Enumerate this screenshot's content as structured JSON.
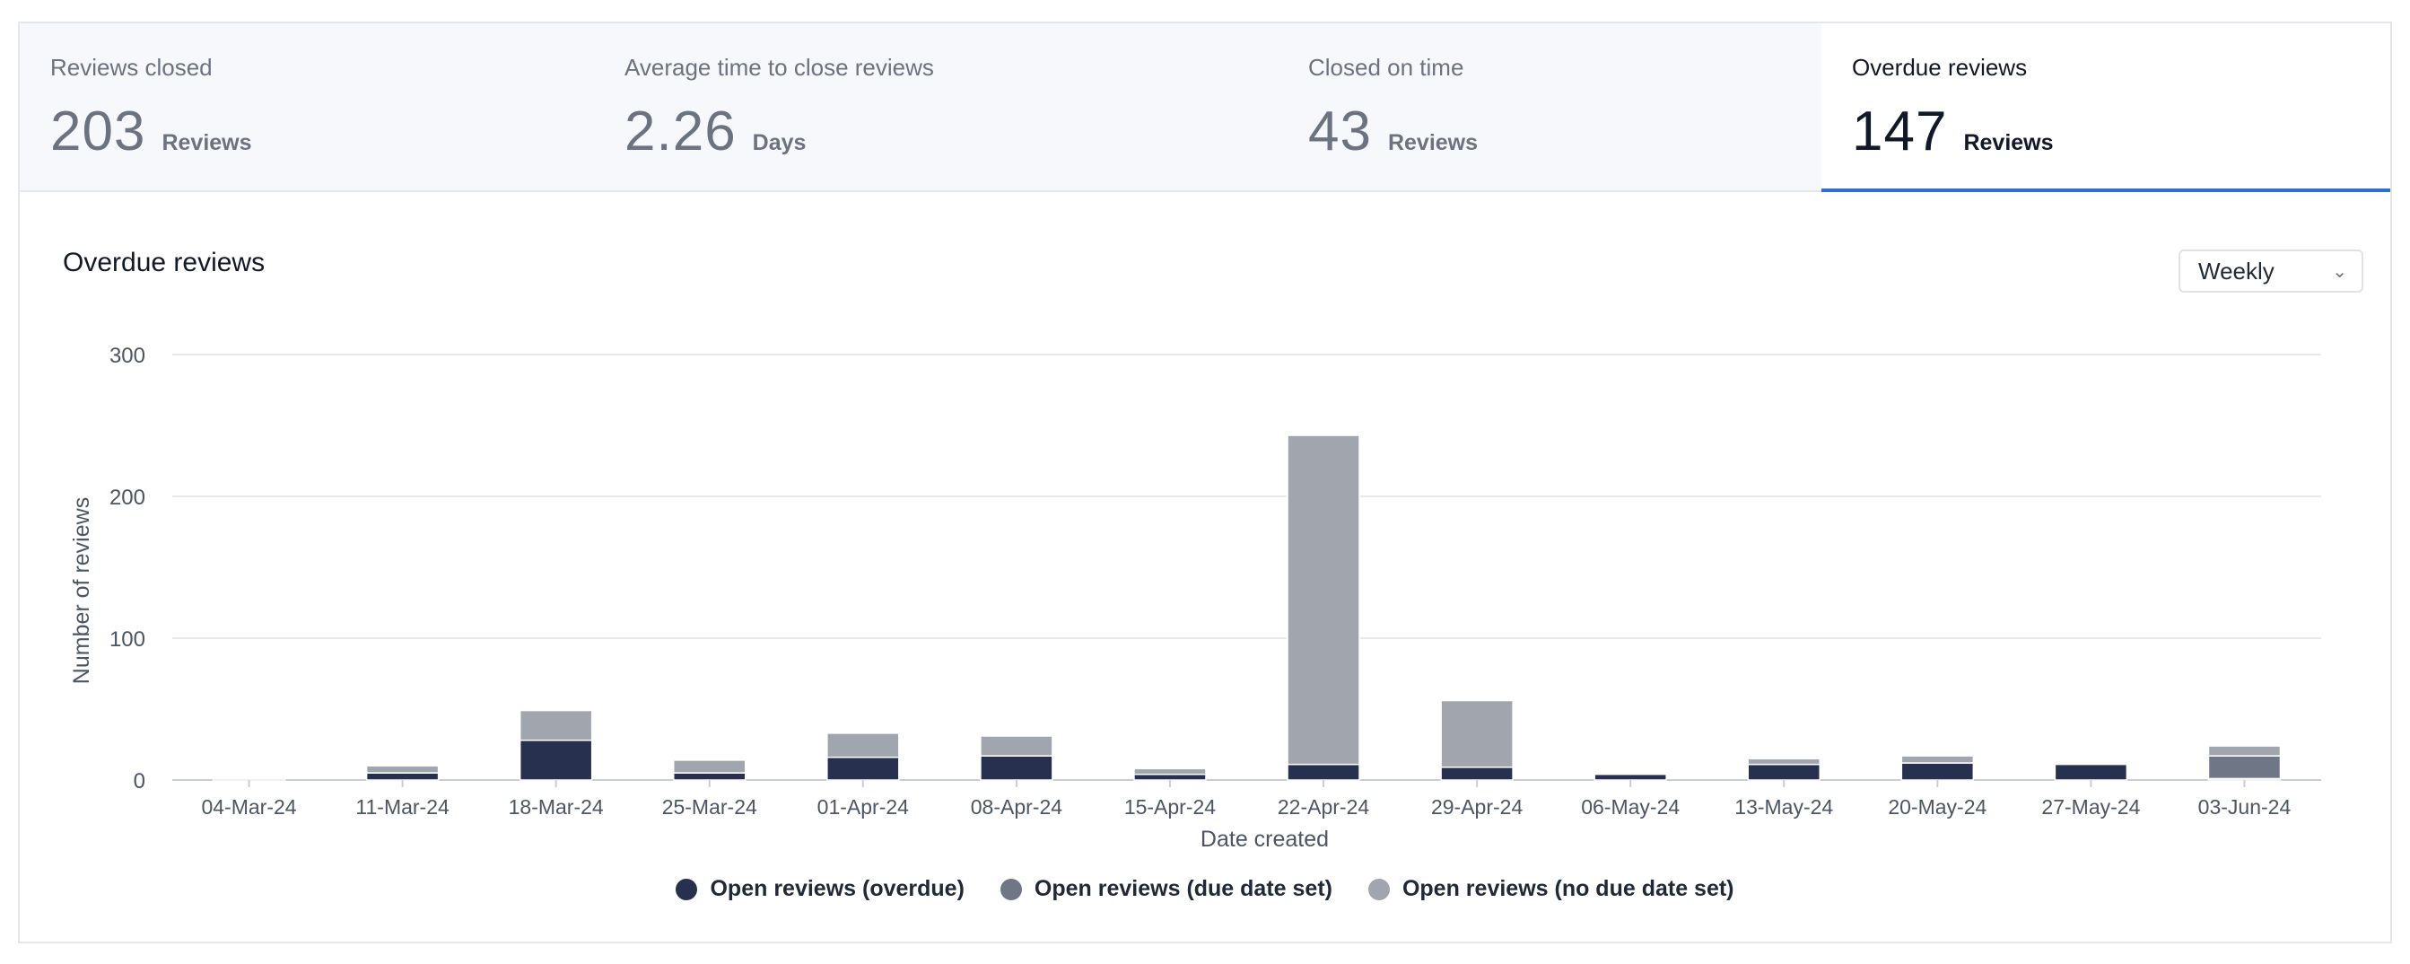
{
  "kpis": [
    {
      "label": "Reviews closed",
      "value": "203",
      "unit": "Reviews"
    },
    {
      "label": "Average time to close reviews",
      "value": "2.26",
      "unit": "Days"
    },
    {
      "label": "Closed on time",
      "value": "43",
      "unit": "Reviews"
    },
    {
      "label": "Overdue reviews",
      "value": "147",
      "unit": "Reviews"
    }
  ],
  "panel": {
    "title": "Overdue reviews",
    "period_select": "Weekly"
  },
  "colors": {
    "overdue": "#27314f",
    "due_date_set": "#6f7787",
    "no_due_date": "#a0a5ae",
    "accent": "#2f6fd0"
  },
  "chart_data": {
    "type": "bar",
    "stacked": true,
    "xlabel": "Date created",
    "ylabel": "Number of reviews",
    "ylim": [
      0,
      300
    ],
    "yticks": [
      0,
      100,
      200,
      300
    ],
    "grid": true,
    "legend_position": "bottom",
    "categories": [
      "04-Mar-24",
      "11-Mar-24",
      "18-Mar-24",
      "25-Mar-24",
      "01-Apr-24",
      "08-Apr-24",
      "15-Apr-24",
      "22-Apr-24",
      "29-Apr-24",
      "06-May-24",
      "13-May-24",
      "20-May-24",
      "27-May-24",
      "03-Jun-24"
    ],
    "series": [
      {
        "name": "Open reviews (overdue)",
        "values": [
          1,
          5,
          28,
          5,
          16,
          17,
          4,
          11,
          9,
          4,
          11,
          12,
          11,
          1
        ]
      },
      {
        "name": "Open reviews (due date set)",
        "values": [
          0,
          0,
          0,
          0,
          0,
          0,
          0,
          0,
          0,
          0,
          0,
          0,
          0,
          16
        ]
      },
      {
        "name": "Open reviews (no due date set)",
        "values": [
          0,
          5,
          21,
          9,
          17,
          14,
          4,
          232,
          47,
          0,
          4,
          5,
          0,
          7
        ]
      }
    ]
  }
}
